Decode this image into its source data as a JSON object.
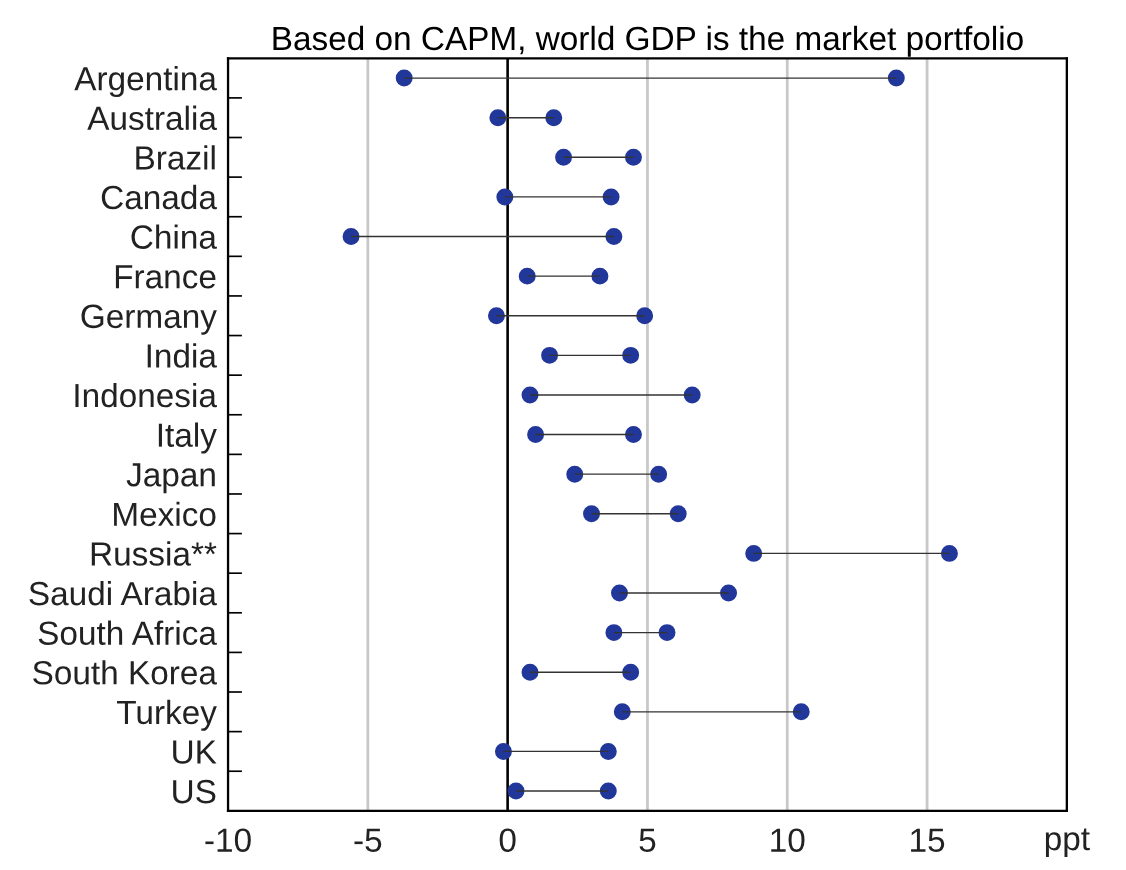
{
  "chart_data": {
    "type": "bar",
    "orientation": "horizontal",
    "title": "Based on CAPM, world GDP is the market portfolio",
    "xlabel": "ppt",
    "categories": [
      "Argentina",
      "Australia",
      "Brazil",
      "Canada",
      "China",
      "France",
      "Germany",
      "India",
      "Indonesia",
      "Italy",
      "Japan",
      "Mexico",
      "Russia**",
      "Saudi Arabia",
      "South Africa",
      "South Korea",
      "Turkey",
      "UK",
      "US"
    ],
    "series": [
      {
        "color": "#333333",
        "base": [
          -3.7,
          -0.35,
          2.0,
          -0.1,
          -5.6,
          0.7,
          -0.4,
          1.5,
          0.8,
          1.0,
          2.4,
          3.0,
          8.8,
          4.0,
          3.8,
          0.8,
          4.1,
          -0.15,
          0.3
        ],
        "values": [
          17.6,
          2.0,
          2.5,
          3.8,
          9.4,
          2.6,
          5.3,
          2.9,
          5.8,
          3.5,
          3.0,
          3.1,
          7.0,
          3.9,
          1.9,
          3.6,
          6.4,
          3.75,
          3.3
        ]
      },
      {
        "type": "scatter",
        "color": "#22379a",
        "values": [
          -3.7,
          -0.35,
          2.0,
          -0.1,
          -5.6,
          0.7,
          -0.4,
          1.5,
          0.8,
          1.0,
          2.4,
          3.0,
          8.8,
          4.0,
          3.8,
          0.8,
          4.1,
          -0.15,
          0.3
        ]
      },
      {
        "type": "scatter",
        "color": "#22379a",
        "values": [
          13.9,
          1.65,
          4.5,
          3.7,
          3.8,
          3.3,
          4.9,
          4.4,
          6.6,
          4.5,
          5.4,
          6.1,
          15.8,
          7.9,
          5.7,
          4.4,
          10.5,
          3.6,
          3.6
        ]
      }
    ],
    "marker": "circle",
    "xlim": [
      -10,
      20
    ],
    "xticks": [
      -10,
      -5,
      0,
      5,
      10,
      15,
      {
        "value": 20,
        "label": null
      }
    ],
    "grid": "x",
    "ref_lines": [
      {
        "axis": "x",
        "value": 0,
        "color": "#000000"
      }
    ]
  }
}
